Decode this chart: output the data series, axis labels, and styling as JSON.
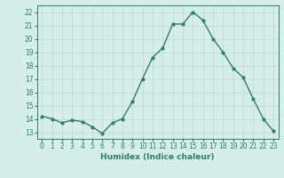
{
  "x": [
    0,
    1,
    2,
    3,
    4,
    5,
    6,
    7,
    8,
    9,
    10,
    11,
    12,
    13,
    14,
    15,
    16,
    17,
    18,
    19,
    20,
    21,
    22,
    23
  ],
  "y": [
    14.2,
    14.0,
    13.7,
    13.9,
    13.8,
    13.4,
    12.9,
    13.7,
    14.0,
    15.3,
    17.0,
    18.6,
    19.3,
    21.1,
    21.1,
    22.0,
    21.4,
    20.0,
    19.0,
    17.8,
    17.1,
    15.5,
    14.0,
    13.1
  ],
  "line_color": "#2e7d6e",
  "marker": "o",
  "markersize": 2.0,
  "linewidth": 1.0,
  "bg_color": "#d6eee8",
  "grid_color": "#c0d8d0",
  "xlabel": "Humidex (Indice chaleur)",
  "xlim": [
    -0.5,
    23.5
  ],
  "ylim": [
    12.5,
    22.5
  ],
  "yticks": [
    13,
    14,
    15,
    16,
    17,
    18,
    19,
    20,
    21,
    22
  ],
  "xticks": [
    0,
    1,
    2,
    3,
    4,
    5,
    6,
    7,
    8,
    9,
    10,
    11,
    12,
    13,
    14,
    15,
    16,
    17,
    18,
    19,
    20,
    21,
    22,
    23
  ],
  "tick_color": "#2e7d6e",
  "label_color": "#2e7d6e",
  "xlabel_fontsize": 6.5,
  "tick_fontsize": 5.5
}
